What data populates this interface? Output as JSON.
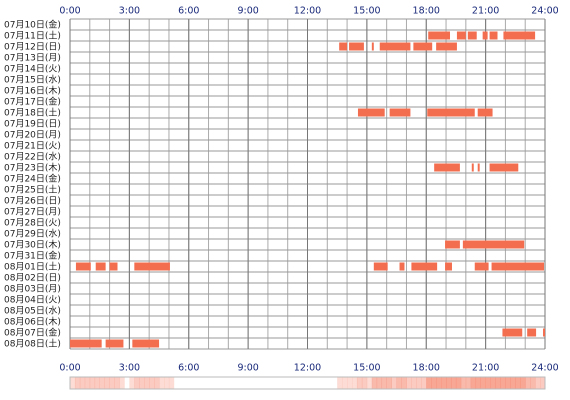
{
  "chart_data": {
    "type": "timeline",
    "color": "#f36d4f",
    "xlim": [
      0,
      24
    ],
    "xticks": [
      {
        "value": 0,
        "label": "0:00"
      },
      {
        "value": 3,
        "label": "3:00"
      },
      {
        "value": 6,
        "label": "6:00"
      },
      {
        "value": 9,
        "label": "9:00"
      },
      {
        "value": 12,
        "label": "12:00"
      },
      {
        "value": 15,
        "label": "15:00"
      },
      {
        "value": 18,
        "label": "18:00"
      },
      {
        "value": 21,
        "label": "21:00"
      },
      {
        "value": 24,
        "label": "24:00"
      }
    ],
    "categories": [
      "07月10日(金)",
      "07月11日(土)",
      "07月12日(日)",
      "07月13日(月)",
      "07月14日(火)",
      "07月15日(水)",
      "07月16日(木)",
      "07月17日(金)",
      "07月18日(土)",
      "07月19日(日)",
      "07月20日(月)",
      "07月21日(火)",
      "07月22日(水)",
      "07月23日(木)",
      "07月24日(金)",
      "07月25日(土)",
      "07月26日(日)",
      "07月27日(月)",
      "07月28日(火)",
      "07月29日(水)",
      "07月30日(木)",
      "07月31日(金)",
      "08月01日(土)",
      "08月02日(日)",
      "08月03日(月)",
      "08月04日(火)",
      "08月05日(水)",
      "08月06日(木)",
      "08月07日(金)",
      "08月08日(土)"
    ],
    "values": [
      [],
      [
        [
          18.1,
          19.2
        ],
        [
          19.55,
          20.0
        ],
        [
          20.1,
          20.55
        ],
        [
          20.85,
          21.1
        ],
        [
          21.2,
          21.6
        ],
        [
          21.9,
          23.5
        ]
      ],
      [
        [
          13.6,
          14.0
        ],
        [
          14.1,
          14.85
        ],
        [
          15.25,
          15.35
        ],
        [
          15.65,
          17.2
        ],
        [
          17.35,
          18.3
        ],
        [
          18.5,
          19.55
        ]
      ],
      [],
      [],
      [],
      [],
      [],
      [
        [
          14.55,
          15.9
        ],
        [
          16.15,
          17.2
        ],
        [
          18.05,
          20.45
        ],
        [
          20.6,
          21.35
        ]
      ],
      [],
      [],
      [],
      [],
      [
        [
          18.4,
          19.7
        ],
        [
          20.3,
          20.4
        ],
        [
          20.6,
          20.7
        ],
        [
          21.2,
          22.65
        ]
      ],
      [],
      [],
      [],
      [],
      [],
      [],
      [
        [
          18.95,
          19.7
        ],
        [
          19.85,
          22.95
        ]
      ],
      [],
      [
        [
          0.3,
          1.05
        ],
        [
          1.3,
          1.8
        ],
        [
          2.0,
          2.4
        ],
        [
          3.25,
          5.05
        ],
        [
          15.35,
          16.05
        ],
        [
          16.65,
          16.9
        ],
        [
          17.25,
          18.55
        ],
        [
          18.95,
          19.3
        ],
        [
          20.45,
          21.15
        ],
        [
          21.3,
          23.95
        ]
      ],
      [],
      [],
      [],
      [],
      [],
      [
        [
          21.85,
          22.85
        ],
        [
          23.1,
          23.55
        ],
        [
          23.9,
          24.0
        ]
      ],
      [
        [
          0.0,
          1.6
        ],
        [
          1.8,
          2.7
        ],
        [
          3.15,
          4.5
        ]
      ]
    ]
  }
}
